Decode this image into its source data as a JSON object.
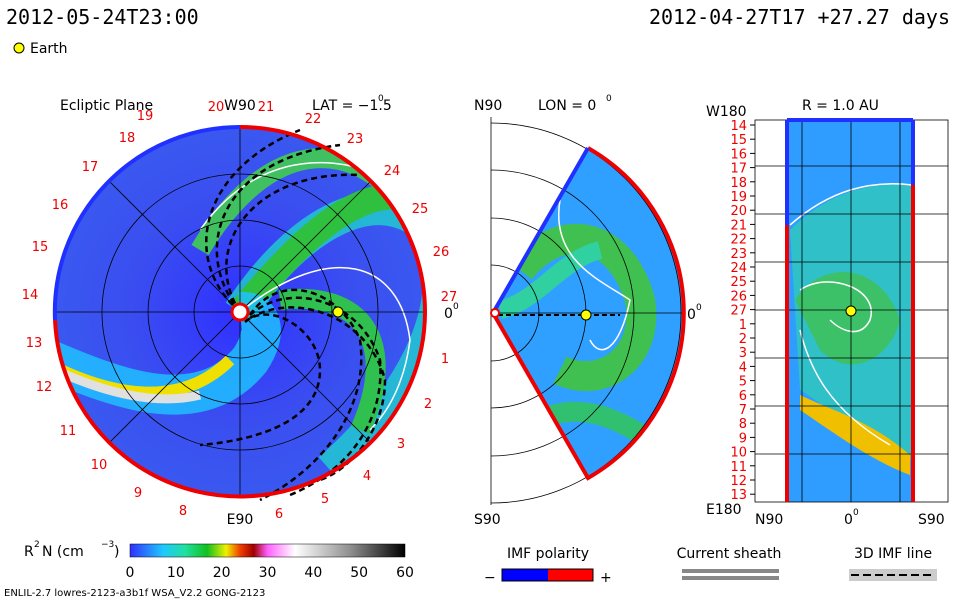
{
  "header": {
    "left": "2012-05-24T23:00",
    "right": "2012-04-27T17 +27.27 days"
  },
  "legend": {
    "earth": "Earth"
  },
  "ecliptic": {
    "title": "Ecliptic Plane",
    "top": "W90",
    "bottom": "E90",
    "lat": "LAT = −1.5",
    "lat_sup": "0",
    "right": "0",
    "right_sup": "0",
    "labels": [
      "19",
      "20",
      "21",
      "22",
      "23",
      "24",
      "25",
      "26",
      "27",
      "1",
      "2",
      "3",
      "4",
      "5",
      "6",
      "8",
      "9",
      "10",
      "11",
      "12",
      "13",
      "14",
      "15",
      "16",
      "17",
      "18"
    ]
  },
  "meridional": {
    "top": "N90",
    "lon": "LON = 0",
    "lon_sup": "0",
    "bottom": "S90",
    "right": "0",
    "right_sup": "0"
  },
  "sphere": {
    "top_left": "W180",
    "title": "R = 1.0 AU",
    "bottom_left": "E180",
    "bottom_n": "N90",
    "bottom_mid": "0",
    "bottom_mid_sup": "0",
    "bottom_s": "S90",
    "labels": [
      "14",
      "15",
      "16",
      "17",
      "18",
      "19",
      "20",
      "21",
      "22",
      "23",
      "24",
      "25",
      "26",
      "27",
      "1",
      "2",
      "3",
      "4",
      "5",
      "6",
      "7",
      "8",
      "9",
      "10",
      "11",
      "12",
      "13"
    ]
  },
  "colorbar": {
    "label_r": "R",
    "label_r_sup": "2",
    "label_mid": " N (cm",
    "label_sup": "−3",
    "label_end": ")",
    "ticks": [
      "0",
      "10",
      "20",
      "30",
      "40",
      "50",
      "60"
    ]
  },
  "imf": {
    "title": "IMF polarity",
    "minus": "−",
    "plus": "+"
  },
  "sheath": {
    "title": "Current sheath"
  },
  "line3d": {
    "title": "3D IMF line"
  },
  "footer": {
    "text": "ENLIL-2.7 lowres-2123-a3b1f WSA_V2.2 GONG-2123"
  }
}
